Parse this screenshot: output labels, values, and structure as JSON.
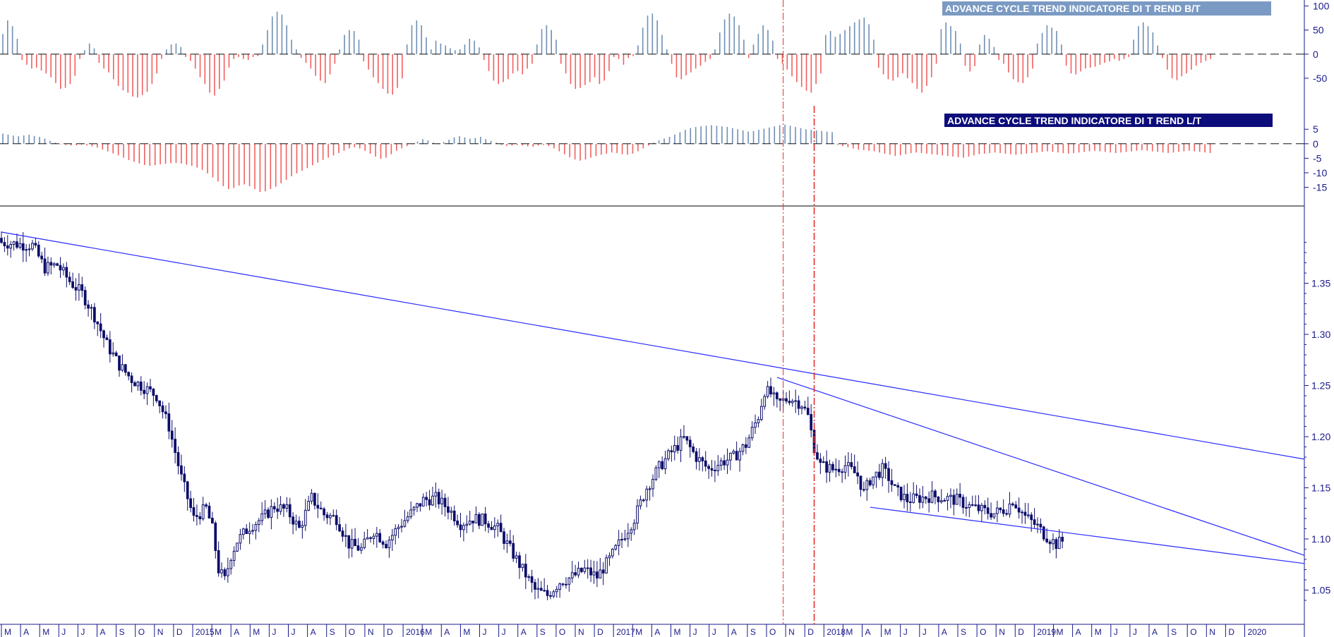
{
  "colors": {
    "axis": "#1a1a8c",
    "candle": "#0d0d6b",
    "positive_bar": "#6f8fb3",
    "negative_bar": "#f06060",
    "trendline": "#2a2aff",
    "cycle_marker": "#e03030",
    "title1_bg": "#7a9ac3",
    "title2_bg": "#0c0c7a"
  },
  "panels": {
    "bt": {
      "title": "ADVANCE CYCLE TREND INDICATORE DI T REND B/T"
    },
    "lt": {
      "title": "ADVANCE CYCLE TREND INDICATORE DI T REND L/T"
    }
  },
  "chart_data": [
    {
      "type": "bar",
      "name": "bt",
      "title": "ADVANCE CYCLE TREND INDICATORE DI T REND B/T",
      "ylim": [
        -75,
        105
      ],
      "yticks": [
        "100",
        "50",
        "0",
        "-50"
      ],
      "yticks_values": [
        100,
        50,
        0,
        -50
      ],
      "zero_line": "dashed",
      "bar_spacing_weeks": 1,
      "values": [
        42,
        70,
        58,
        32,
        -12,
        -22,
        -30,
        -28,
        -34,
        -40,
        -48,
        -60,
        -72,
        -70,
        -62,
        -45,
        -10,
        8,
        22,
        12,
        -18,
        -30,
        -38,
        -52,
        -66,
        -75,
        -80,
        -88,
        -90,
        -85,
        -78,
        -62,
        -40,
        -10,
        10,
        20,
        22,
        15,
        -6,
        -14,
        -30,
        -48,
        -62,
        -80,
        -86,
        -72,
        -55,
        -28,
        -10,
        -6,
        -10,
        -12,
        -6,
        -4,
        20,
        50,
        78,
        88,
        82,
        60,
        30,
        10,
        -8,
        -18,
        -30,
        -45,
        -55,
        -60,
        -42,
        -20,
        10,
        40,
        50,
        48,
        30,
        -15,
        -32,
        -48,
        -60,
        -72,
        -82,
        -84,
        -70,
        -50,
        20,
        60,
        70,
        60,
        35,
        10,
        28,
        22,
        18,
        12,
        8,
        10,
        20,
        32,
        28,
        14,
        -12,
        -35,
        -55,
        -62,
        -58,
        -52,
        -40,
        -35,
        -42,
        -30,
        -20,
        20,
        52,
        60,
        50,
        30,
        -20,
        -40,
        -62,
        -72,
        -70,
        -64,
        -58,
        -48,
        -62,
        -55,
        -35,
        -6,
        -10,
        -22,
        -8,
        -4,
        18,
        55,
        80,
        84,
        70,
        40,
        10,
        -20,
        -48,
        -52,
        -44,
        -38,
        -30,
        -24,
        -16,
        -10,
        10,
        45,
        72,
        84,
        78,
        60,
        30,
        -8,
        20,
        42,
        60,
        50,
        28,
        -10,
        -20,
        -32,
        -46,
        -58,
        -68,
        -76,
        -80,
        -62,
        -40,
        40,
        48,
        36,
        42,
        50,
        58,
        66,
        72,
        76,
        62,
        30,
        -28,
        -42,
        -52,
        -55,
        -48,
        -40,
        -50,
        -60,
        -72,
        -80,
        -66,
        -48,
        -20,
        52,
        66,
        58,
        48,
        22,
        -24,
        -36,
        -25,
        20,
        40,
        32,
        15,
        -12,
        -20,
        -38,
        -52,
        -58,
        -60,
        -48,
        -30,
        22,
        44,
        60,
        55,
        48,
        20,
        -24,
        -40,
        -42,
        -36,
        -30,
        -28,
        -26,
        -22,
        -18,
        -15,
        -10,
        -14,
        -10,
        -6,
        30,
        58,
        66,
        58,
        45,
        18,
        -8,
        -32,
        -50,
        -54,
        -46,
        -40,
        -32,
        -24,
        -18,
        -14,
        -10
      ],
      "values_estimated": true
    },
    {
      "type": "bar",
      "name": "lt",
      "title": "ADVANCE CYCLE TREND INDICATORE DI T REND L/T",
      "ylim": [
        -19,
        7
      ],
      "yticks": [
        "5",
        "0",
        "-5",
        "-10",
        "-15"
      ],
      "yticks_values": [
        5,
        0,
        -5,
        -10,
        -15
      ],
      "zero_line": "dashed",
      "bar_spacing_weeks": 1,
      "values": [
        3.5,
        3.2,
        2.8,
        2.6,
        2.9,
        3.1,
        2.7,
        2.4,
        1.8,
        1.0,
        0.4,
        -0.2,
        -0.4,
        -0.6,
        -0.5,
        -0.3,
        -0.6,
        -0.9,
        -1.3,
        -2.0,
        -2.6,
        -3.3,
        -4.0,
        -4.8,
        -5.6,
        -6.2,
        -6.8,
        -7.3,
        -7.6,
        -7.4,
        -7.1,
        -6.9,
        -6.7,
        -6.6,
        -6.8,
        -7.2,
        -7.6,
        -8.2,
        -9.0,
        -10.2,
        -11.6,
        -13.0,
        -14.6,
        -15.6,
        -15.2,
        -14.4,
        -14.0,
        -14.6,
        -15.6,
        -16.6,
        -16.4,
        -15.6,
        -14.8,
        -13.6,
        -12.4,
        -11.2,
        -10.2,
        -9.3,
        -8.4,
        -7.4,
        -6.5,
        -5.6,
        -4.8,
        -4.0,
        -3.2,
        -2.4,
        -1.6,
        -1.2,
        -1.6,
        -2.4,
        -3.4,
        -4.4,
        -5.2,
        -4.8,
        -3.6,
        -2.4,
        -1.6,
        -0.8,
        -0.2,
        0.8,
        1.6,
        1.2,
        0.4,
        -0.2,
        0.6,
        1.4,
        2.2,
        2.6,
        2.2,
        1.8,
        2.0,
        2.4,
        1.6,
        1.0,
        0.4,
        -0.4,
        -0.8,
        -0.6,
        -0.4,
        -0.6,
        -0.9,
        -1.0,
        -0.6,
        -0.4,
        -0.8,
        -1.6,
        -2.6,
        -3.6,
        -4.6,
        -5.4,
        -5.8,
        -5.4,
        -4.8,
        -4.2,
        -3.8,
        -3.4,
        -3.0,
        -3.2,
        -3.6,
        -3.8,
        -3.4,
        -2.6,
        -1.6,
        -0.6,
        0.4,
        1.2,
        1.8,
        2.4,
        3.2,
        4.0,
        4.8,
        5.4,
        5.8,
        6.0,
        6.2,
        6.4,
        6.2,
        6.0,
        5.8,
        5.4,
        5.0,
        4.6,
        4.2,
        4.4,
        4.8,
        5.2,
        5.6,
        6.0,
        6.4,
        6.6,
        6.2,
        5.8,
        5.4,
        5.0,
        4.8,
        4.6,
        4.4,
        4.2,
        4.0,
        -0.4,
        -0.8,
        -1.2,
        -1.6,
        -2.0,
        -2.2,
        -2.4,
        -2.6,
        -3.0,
        -3.4,
        -3.8,
        -4.2,
        -4.0,
        -3.6,
        -3.2,
        -3.0,
        -3.2,
        -3.4,
        -3.6,
        -3.8,
        -4.0,
        -4.2,
        -4.4,
        -4.6,
        -4.8,
        -4.4,
        -4.0,
        -3.6,
        -3.4,
        -3.2,
        -3.0,
        -3.2,
        -3.4,
        -3.6,
        -3.8,
        -3.6,
        -3.4,
        -3.2,
        -3.0,
        -2.8,
        -2.6,
        -2.8,
        -3.0,
        -3.2,
        -3.4,
        -3.2,
        -3.0,
        -2.8,
        -2.6,
        -2.4,
        -2.6,
        -2.8,
        -3.0,
        -3.2,
        -3.0,
        -2.8,
        -2.6,
        -2.4,
        -2.2,
        -2.4,
        -2.6,
        -2.8,
        -3.0,
        -3.2,
        -3.0,
        -2.8,
        -2.6,
        -2.4,
        -2.6,
        -2.8,
        -3.0,
        -3.2
      ],
      "values_estimated": true
    },
    {
      "type": "candlestick",
      "name": "price",
      "title": "",
      "ylim": [
        1.02,
        1.42
      ],
      "yticks": [
        "1.35",
        "1.30",
        "1.25",
        "1.20",
        "1.15",
        "1.10",
        "1.05"
      ],
      "yticks_values": [
        1.35,
        1.3,
        1.25,
        1.2,
        1.15,
        1.1,
        1.05
      ],
      "x_unit": "weeks",
      "x_start_label": "2014-03",
      "close_path": [
        [
          0,
          1.39
        ],
        [
          6,
          1.388
        ],
        [
          10,
          1.387
        ],
        [
          14,
          1.365
        ],
        [
          18,
          1.368
        ],
        [
          22,
          1.352
        ],
        [
          26,
          1.34
        ],
        [
          30,
          1.318
        ],
        [
          34,
          1.29
        ],
        [
          38,
          1.27
        ],
        [
          42,
          1.256
        ],
        [
          46,
          1.248
        ],
        [
          50,
          1.24
        ],
        [
          54,
          1.21
        ],
        [
          58,
          1.16
        ],
        [
          62,
          1.12
        ],
        [
          66,
          1.13
        ],
        [
          68,
          1.11
        ],
        [
          70,
          1.07
        ],
        [
          72,
          1.06
        ],
        [
          74,
          1.084
        ],
        [
          76,
          1.098
        ],
        [
          80,
          1.112
        ],
        [
          84,
          1.12
        ],
        [
          88,
          1.132
        ],
        [
          92,
          1.128
        ],
        [
          96,
          1.11
        ],
        [
          100,
          1.14
        ],
        [
          104,
          1.124
        ],
        [
          108,
          1.12
        ],
        [
          112,
          1.095
        ],
        [
          116,
          1.09
        ],
        [
          120,
          1.108
        ],
        [
          124,
          1.096
        ],
        [
          128,
          1.112
        ],
        [
          132,
          1.125
        ],
        [
          136,
          1.138
        ],
        [
          140,
          1.14
        ],
        [
          144,
          1.13
        ],
        [
          148,
          1.115
        ],
        [
          152,
          1.12
        ],
        [
          156,
          1.118
        ],
        [
          160,
          1.11
        ],
        [
          164,
          1.09
        ],
        [
          168,
          1.07
        ],
        [
          172,
          1.05
        ],
        [
          176,
          1.045
        ],
        [
          180,
          1.058
        ],
        [
          184,
          1.063
        ],
        [
          188,
          1.07
        ],
        [
          192,
          1.063
        ],
        [
          196,
          1.08
        ],
        [
          200,
          1.1
        ],
        [
          204,
          1.12
        ],
        [
          208,
          1.15
        ],
        [
          212,
          1.17
        ],
        [
          216,
          1.185
        ],
        [
          220,
          1.198
        ],
        [
          224,
          1.18
        ],
        [
          228,
          1.168
        ],
        [
          232,
          1.175
        ],
        [
          236,
          1.18
        ],
        [
          240,
          1.192
        ],
        [
          244,
          1.22
        ],
        [
          246,
          1.245
        ],
        [
          248,
          1.242
        ],
        [
          250,
          1.232
        ],
        [
          254,
          1.238
        ],
        [
          258,
          1.232
        ],
        [
          260,
          1.22
        ],
        [
          262,
          1.19
        ],
        [
          264,
          1.172
        ],
        [
          268,
          1.168
        ],
        [
          272,
          1.172
        ],
        [
          276,
          1.162
        ],
        [
          278,
          1.145
        ],
        [
          280,
          1.158
        ],
        [
          284,
          1.168
        ],
        [
          286,
          1.16
        ],
        [
          288,
          1.148
        ],
        [
          292,
          1.138
        ],
        [
          296,
          1.14
        ],
        [
          300,
          1.142
        ],
        [
          304,
          1.14
        ],
        [
          308,
          1.138
        ],
        [
          312,
          1.132
        ],
        [
          316,
          1.128
        ],
        [
          320,
          1.125
        ],
        [
          324,
          1.13
        ],
        [
          326,
          1.138
        ],
        [
          330,
          1.122
        ],
        [
          334,
          1.112
        ],
        [
          336,
          1.105
        ],
        [
          338,
          1.1
        ],
        [
          340,
          1.095
        ],
        [
          342,
          1.098
        ]
      ],
      "trendlines": [
        {
          "from": [
            0,
            1.4
          ],
          "to": [
            420,
            1.178
          ],
          "label": ""
        },
        {
          "from": [
            250,
            1.258
          ],
          "to": [
            420,
            1.084
          ],
          "label": ""
        },
        {
          "from": [
            280,
            1.131
          ],
          "to": [
            420,
            1.076
          ],
          "label": ""
        }
      ],
      "cycle_markers_weeks": [
        252,
        262
      ],
      "values_estimated": true
    }
  ],
  "x_axis": {
    "labels": [
      "M",
      "A",
      "M",
      "J",
      "J",
      "A",
      "S",
      "O",
      "N",
      "D",
      "2015",
      "M",
      "A",
      "M",
      "J",
      "J",
      "A",
      "S",
      "O",
      "N",
      "D",
      "2016",
      "M",
      "A",
      "M",
      "J",
      "J",
      "A",
      "S",
      "O",
      "N",
      "D",
      "2017",
      "M",
      "A",
      "M",
      "J",
      "J",
      "A",
      "S",
      "O",
      "N",
      "D",
      "2018",
      "M",
      "A",
      "M",
      "J",
      "J",
      "A",
      "S",
      "O",
      "N",
      "D",
      "2019",
      "M",
      "A",
      "M",
      "J",
      "J",
      "A",
      "S",
      "O",
      "N",
      "D",
      "2020"
    ],
    "year_labels": [
      "2015",
      "2016",
      "2017",
      "2018",
      "2019",
      "2020"
    ]
  }
}
